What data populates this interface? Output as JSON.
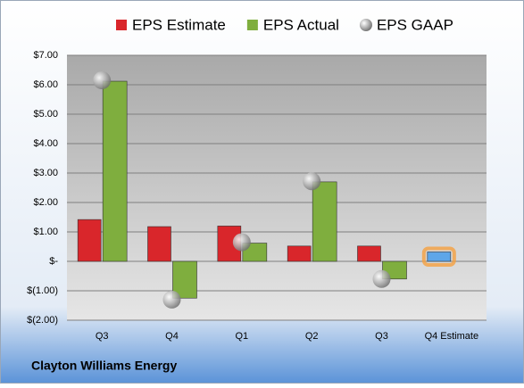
{
  "chart_data": {
    "type": "bar",
    "title": "Clayton Williams Energy",
    "categories": [
      "Q3",
      "Q4",
      "Q1",
      "Q2",
      "Q3",
      "Q4 Estimate"
    ],
    "series": [
      {
        "name": "EPS Estimate",
        "color": "#d9262b",
        "values": [
          1.42,
          1.18,
          1.2,
          0.52,
          0.52,
          0.32
        ],
        "colors": [
          "#d9262b",
          "#d9262b",
          "#d9262b",
          "#d9262b",
          "#d9262b",
          "#5ea6e8"
        ]
      },
      {
        "name": "EPS Actual",
        "color": "#7fae3e",
        "values": [
          6.12,
          -1.25,
          0.62,
          2.7,
          -0.6,
          null
        ]
      },
      {
        "name": "EPS GAAP",
        "color": "#a8a8a8",
        "type": "scatter",
        "values": [
          6.15,
          -1.3,
          0.65,
          2.72,
          -0.6,
          null
        ]
      }
    ],
    "ylim": [
      -2,
      7
    ],
    "yticks": [
      {
        "value": -2,
        "label": "$(2.00)"
      },
      {
        "value": -1,
        "label": "$(1.00)"
      },
      {
        "value": 0,
        "label": "$-"
      },
      {
        "value": 1,
        "label": "$1.00"
      },
      {
        "value": 2,
        "label": "$2.00"
      },
      {
        "value": 3,
        "label": "$3.00"
      },
      {
        "value": 4,
        "label": "$4.00"
      },
      {
        "value": 5,
        "label": "$5.00"
      },
      {
        "value": 6,
        "label": "$6.00"
      },
      {
        "value": 7,
        "label": "$7.00"
      }
    ],
    "grid": true,
    "legend": "top"
  }
}
